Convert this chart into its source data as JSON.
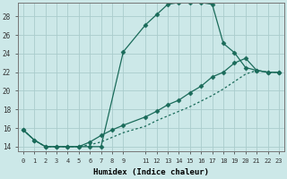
{
  "xlabel": "Humidex (Indice chaleur)",
  "background_color": "#cce8e8",
  "grid_color": "#aacccc",
  "line_color": "#1a6b5a",
  "xlim": [
    -0.5,
    23.5
  ],
  "ylim": [
    13.5,
    29.5
  ],
  "xticks": [
    0,
    1,
    2,
    3,
    4,
    5,
    6,
    7,
    8,
    9,
    11,
    12,
    13,
    14,
    15,
    16,
    17,
    18,
    19,
    20,
    21,
    22,
    23
  ],
  "yticks": [
    14,
    16,
    18,
    20,
    22,
    24,
    26,
    28
  ],
  "line1_x": [
    0,
    1,
    2,
    3,
    4,
    5,
    6,
    7,
    9,
    11,
    12,
    13,
    14,
    15,
    16,
    17,
    18,
    19,
    20,
    21,
    22,
    23
  ],
  "line1_y": [
    15.8,
    14.7,
    14.0,
    14.0,
    14.0,
    14.0,
    14.0,
    14.0,
    24.2,
    27.1,
    28.2,
    29.3,
    29.5,
    29.5,
    29.5,
    29.3,
    25.1,
    24.1,
    22.5,
    22.2,
    22.0,
    22.0
  ],
  "line2_x": [
    0,
    1,
    2,
    3,
    4,
    5,
    6,
    7,
    8,
    9,
    11,
    12,
    13,
    14,
    15,
    16,
    17,
    18,
    19,
    20,
    21,
    22,
    23
  ],
  "line2_y": [
    15.8,
    14.7,
    14.0,
    14.0,
    14.0,
    14.0,
    14.5,
    15.2,
    15.8,
    16.3,
    17.2,
    17.8,
    18.5,
    19.0,
    19.8,
    20.5,
    21.5,
    22.0,
    23.0,
    23.5,
    22.2,
    22.0,
    22.0
  ],
  "line3_x": [
    0,
    1,
    2,
    3,
    4,
    5,
    6,
    7,
    8,
    9,
    11,
    12,
    13,
    14,
    15,
    16,
    17,
    18,
    19,
    20,
    21,
    22,
    23
  ],
  "line3_y": [
    15.8,
    14.7,
    14.0,
    14.0,
    14.0,
    14.0,
    14.2,
    14.5,
    15.0,
    15.5,
    16.2,
    16.8,
    17.3,
    17.8,
    18.3,
    18.9,
    19.5,
    20.2,
    21.0,
    21.8,
    22.2,
    22.0,
    22.0
  ]
}
